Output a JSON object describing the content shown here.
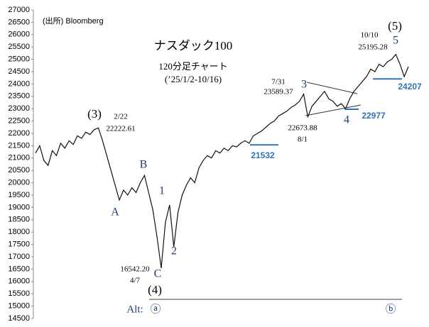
{
  "chart_data": {
    "type": "line",
    "source": "(出所) Bloomberg",
    "title": "ナスダック100",
    "subtitle": "120分足チャート",
    "period": "(’25/1/2-10/16)",
    "color": "#111111",
    "ylim": [
      14500,
      27000
    ],
    "yticks": [
      14500,
      15000,
      15500,
      16000,
      16500,
      17000,
      17500,
      18000,
      18500,
      19000,
      19500,
      20000,
      20500,
      21000,
      21500,
      22000,
      22500,
      23000,
      23500,
      24000,
      24500,
      25000,
      25500,
      26000,
      26500,
      27000
    ],
    "categories": [
      null,
      null,
      null,
      null,
      null,
      null,
      null,
      null,
      null,
      null,
      null,
      null,
      null,
      null,
      null,
      null,
      null,
      null,
      null,
      null,
      null,
      null,
      null,
      null,
      null,
      null,
      null,
      null,
      null,
      null,
      null,
      null,
      null,
      null,
      null,
      null,
      null,
      null,
      null,
      null,
      null,
      null,
      null,
      null,
      null,
      null,
      null,
      null,
      null,
      null,
      null,
      null,
      null,
      null,
      null,
      null,
      null,
      null,
      null,
      null,
      null,
      null,
      null,
      null,
      null,
      null,
      null,
      null,
      null,
      null,
      null,
      null,
      null,
      null,
      null,
      null,
      null,
      null,
      null,
      null,
      null,
      null,
      null,
      null,
      null,
      null,
      null,
      null,
      null,
      null
    ],
    "values": [
      21200,
      21500,
      20900,
      20700,
      21300,
      21100,
      21600,
      21400,
      21700,
      21550,
      21900,
      21800,
      22050,
      21950,
      22150,
      22222,
      21700,
      21100,
      20500,
      19900,
      19300,
      19700,
      19500,
      19800,
      19600,
      20000,
      20300,
      19600,
      18900,
      17800,
      16542,
      18400,
      19100,
      17400,
      18800,
      19500,
      19900,
      20200,
      20000,
      20600,
      20900,
      21100,
      21000,
      21300,
      21200,
      21400,
      21300,
      21500,
      21450,
      21600,
      21700,
      21600,
      21900,
      22000,
      22100,
      22250,
      22400,
      22500,
      22700,
      22800,
      22900,
      23050,
      23150,
      23300,
      23589,
      22673,
      23100,
      23300,
      23500,
      23700,
      23400,
      23300,
      23100,
      23200,
      23000,
      23400,
      23700,
      23900,
      24100,
      24300,
      24600,
      24500,
      24800,
      24700,
      24900,
      25000,
      25195,
      24800,
      24300,
      24700
    ],
    "levels": [
      21532,
      22977,
      24207
    ],
    "level_color": "#2e75b6",
    "annotations": [
      "(3)",
      "2/22",
      "22222.61",
      "A",
      "B",
      "1",
      "2",
      "C",
      "16542.20",
      "4/7",
      "(4)",
      "Alt:",
      "ⓐ",
      "ⓑ",
      "7/31",
      "23589.37",
      "3",
      "22673.88",
      "8/1",
      "4",
      "10/10",
      "25195.28",
      "(5)",
      "5"
    ]
  }
}
